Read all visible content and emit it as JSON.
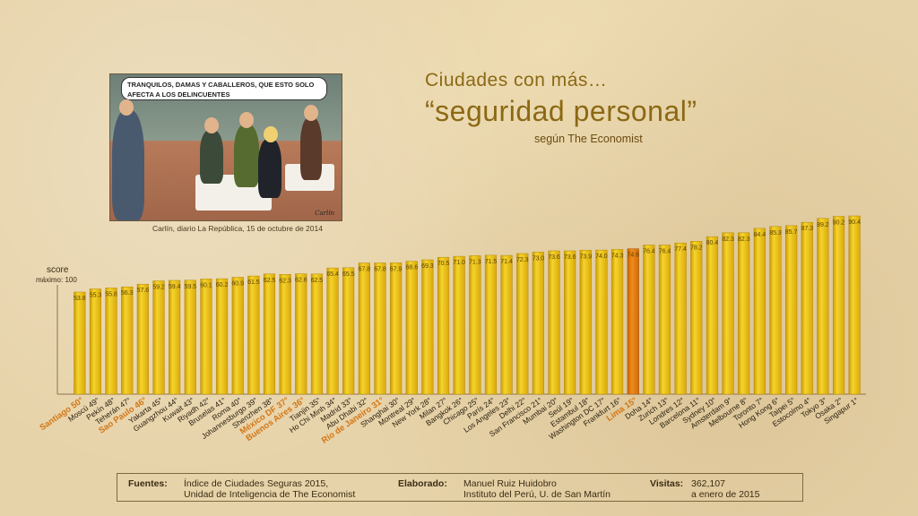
{
  "cartoon": {
    "speech": "Tranquilos, damas y caballeros, que esto solo afecta a los delincuentes",
    "signature": "Carlín"
  },
  "caption": "Carlín, diario La República, 15 de octubre de 2014",
  "title_line1": "Ciudades con más…",
  "title_line2": "“seguridad personal”",
  "subtitle": "según The Economist",
  "chart_data": {
    "type": "bar",
    "ylabel": "score",
    "ymax_label": "máximo: 100",
    "ylim": [
      50,
      93
    ],
    "highlight_color": "#e07b10",
    "bar_color": "#f2c418",
    "categories": [
      "Santiago 50°",
      "Moscú 49°",
      "Pekín 48°",
      "Teherán 47°",
      "Sao Paulo 46°",
      "Yakarta 45°",
      "Guangzhou 44°",
      "Kuwait 43°",
      "Riyadh 42°",
      "Bruselas 41°",
      "Roma 40°",
      "Johannesburgo 39°",
      "Shenzhen 38°",
      "México DF 37°",
      "Buenos Aires 36°",
      "Tianjin 35°",
      "Ho Chi Minh 34°",
      "Madrid 33°",
      "Abu Dhabi 32°",
      "Río de Janeiro 31°",
      "Shanghai 30°",
      "Montreal 29°",
      "New York 28°",
      "Milan 27°",
      "Bangkok 26°",
      "Chicago 25°",
      "París 24°",
      "Los Angeles 23°",
      "Delhi 22°",
      "San Francisco 21°",
      "Mumbai 20°",
      "Seúl 19°",
      "Estambul 18°",
      "Washington DC 17°",
      "Frankfurt 16°",
      "Lima 15°",
      "Doha 14°",
      "Zurich 13°",
      "Londres 12°",
      "Barcelona 11°",
      "Sydney 10°",
      "Amsterdam 9°",
      "Melbourne 8°",
      "Toronto 7°",
      "Hong Kong 6°",
      "Taipei 5°",
      "Estocolmo 4°",
      "Tokyo 3°",
      "Osaka 2°",
      "Singapur 1°"
    ],
    "value_labels": [
      "53.8",
      "55.3",
      "55.8",
      "56.3",
      "57.6",
      "59.2",
      "59.4",
      "59.5",
      "60.1",
      "60.2",
      "60.9",
      "61.5",
      "62.5",
      "62.3",
      "62.6",
      "62.5",
      "65.4",
      "65.5",
      "67.8",
      "67.8",
      "67.9",
      "68.6",
      "69.3",
      "70.5",
      "71.0",
      "71.3",
      "71.5",
      "71.4",
      "72.3",
      "73.0",
      "73.6",
      "73.6",
      "73.9",
      "74.0",
      "74.3",
      "74.6",
      "76.4",
      "76.4",
      "77.4",
      "78.2",
      "80.4",
      "82.3",
      "82.3",
      "84.4",
      "85.3",
      "85.7",
      "87.3",
      "89.2",
      "90.2",
      "90.4"
    ],
    "values": [
      53.8,
      55.3,
      55.8,
      56.3,
      57.6,
      59.2,
      59.4,
      59.5,
      60.1,
      60.2,
      60.9,
      61.5,
      62.5,
      62.3,
      62.6,
      62.5,
      65.4,
      65.5,
      67.8,
      67.8,
      67.9,
      68.6,
      69.3,
      70.5,
      71.0,
      71.3,
      71.5,
      71.4,
      72.3,
      73.0,
      73.6,
      73.6,
      73.9,
      74.0,
      74.3,
      74.6,
      76.4,
      76.4,
      77.4,
      78.2,
      80.4,
      82.3,
      82.3,
      84.4,
      85.3,
      85.7,
      87.3,
      89.2,
      90.2,
      90.4
    ],
    "peru_region_cities": [
      "Santiago 50°",
      "Sao Paulo 46°",
      "México DF 37°",
      "Buenos Aires 36°",
      "Río de Janeiro 31°",
      "Lima 15°"
    ],
    "highlight": "Lima 15°"
  },
  "footer": {
    "sources_label": "Fuentes:",
    "sources_line1": "Índice  de Ciudades Seguras 2015,",
    "sources_line2": "Unidad de Inteligencia de The Economist",
    "made_label": "Elaborado:",
    "made_line1": "Manuel Ruiz Huidobro",
    "made_line2": "Instituto del Perú, U. de San Martín",
    "visits_label": "Visitas:",
    "visits_line1": "362,107",
    "visits_line2": "a enero de 2015"
  }
}
